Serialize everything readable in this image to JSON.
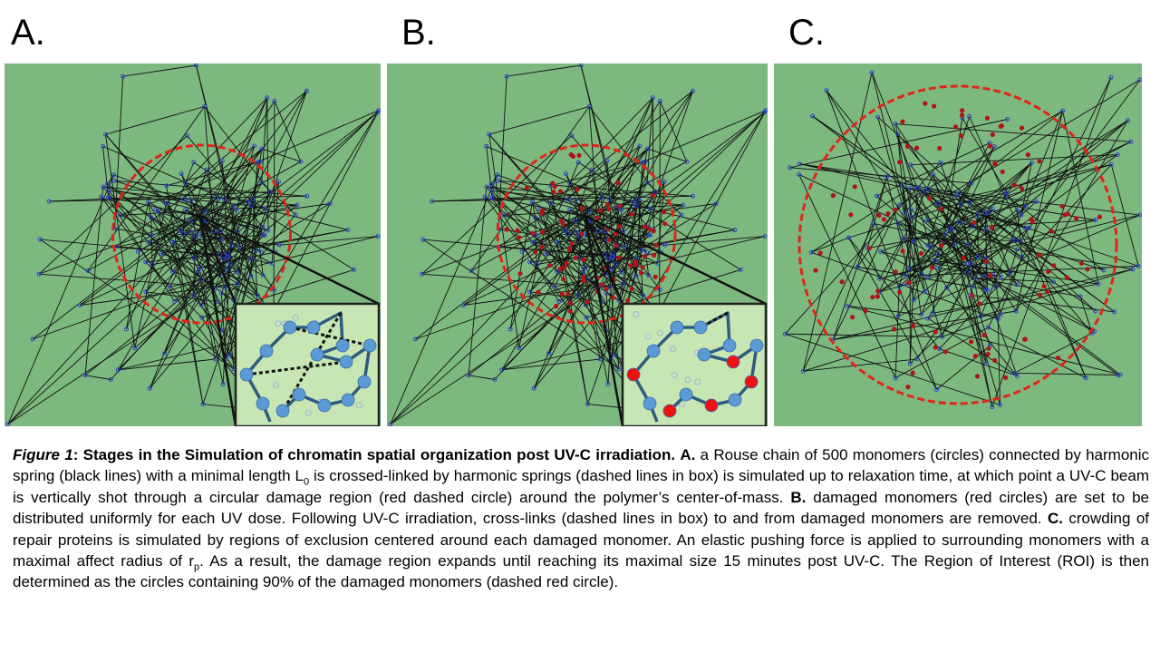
{
  "panels": [
    {
      "id": "A",
      "label": "A.",
      "damaged": false,
      "expanded": false
    },
    {
      "id": "B",
      "label": "B.",
      "damaged": true,
      "expanded": false
    },
    {
      "id": "C",
      "label": "C.",
      "damaged": true,
      "expanded": true
    }
  ],
  "colors": {
    "background": "#7db87f",
    "monomer": "#2b3fd6",
    "spring": "#111111",
    "damage_circle": "#e0251b",
    "damaged_monomer": "#b0141a",
    "inset_bg": "#c8e6b4",
    "inset_bead": "#5b9bd5",
    "inset_damaged": "#ee1111",
    "inset_chain": "#2f5b80"
  },
  "caption": {
    "figure_label": "Figure 1",
    "title": "Stages in the Simulation of chromatin spatial organization post UV-C irradiation.",
    "part_a_label": "A.",
    "part_a_text_1": "a Rouse chain of 500 monomers (circles) connected by harmonic spring (black lines) with a minimal length L",
    "part_a_sub": "0",
    "part_a_text_2": "is crossed-linked by harmonic springs (dashed lines in box) is simulated up to relaxation time, at which point a UV-C beam is vertically shot through a circular damage region (red dashed circle) around the polymer’s center-of-mass.",
    "part_b_label": "B.",
    "part_b_text": "damaged monomers (red circles) are set to be distributed uniformly for each UV dose. Following UV-C irradiation, cross-links (dashed lines in box) to and from damaged monomers are removed.",
    "part_c_label": "C.",
    "part_c_text_1": "crowding of repair proteins is simulated by regions of exclusion centered around each damaged monomer. An elastic pushing force is applied to surrounding monomers with a maximal affect radius of r",
    "part_c_sub": "p",
    "part_c_text_2": ". As a result, the damage region expands until reaching its maximal size 15 minutes post UV-C. The Region of Interest (ROI) is then determined as the circles containing 90% of the damaged monomers (dashed red circle)."
  }
}
